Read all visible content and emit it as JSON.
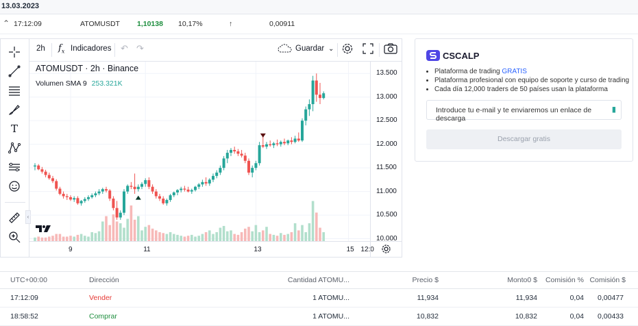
{
  "date": "13.03.2023",
  "ticker_row": {
    "time": "17:12:09",
    "symbol": "ATOMUSDT",
    "price": "1,10138",
    "change": "10,17%",
    "arrow": "↑",
    "volume": "0,00911"
  },
  "toolbar": {
    "interval": "2h",
    "indicators_label": "Indicadores",
    "save_label": "Guardar"
  },
  "chart_legend": {
    "title": "ATOMUSDT · 2h · Binance",
    "vol_label": "Volumen SMA 9",
    "vol_value": "253.321K"
  },
  "colors": {
    "up": "#26a69a",
    "down": "#ef5350",
    "up_vol": "#b2dfcc",
    "down_vol": "#f7b9b8",
    "brand": "#4f46e5",
    "link": "#2962ff"
  },
  "chart_data": {
    "type": "candlestick",
    "title": "ATOMUSDT · 2h · Binance",
    "ylim": [
      9.95,
      13.75
    ],
    "y_ticks": [
      "13.500",
      "13.000",
      "12.500",
      "12.000",
      "11.500",
      "11.000",
      "10.500",
      "10.000"
    ],
    "x_ticks": [
      "9",
      "11",
      "13",
      "15",
      "12:0"
    ],
    "markers": [
      {
        "index": 29,
        "type": "buy-arrow-up"
      },
      {
        "index": 64,
        "type": "sell-arrow-down"
      }
    ],
    "candles": [
      [
        11.53,
        11.6,
        11.45,
        11.55
      ],
      [
        11.55,
        11.58,
        11.45,
        11.47
      ],
      [
        11.47,
        11.52,
        11.38,
        11.42
      ],
      [
        11.42,
        11.46,
        11.3,
        11.35
      ],
      [
        11.35,
        11.4,
        11.25,
        11.28
      ],
      [
        11.28,
        11.33,
        11.18,
        11.22
      ],
      [
        11.22,
        11.26,
        11.02,
        11.06
      ],
      [
        11.06,
        11.1,
        10.92,
        10.95
      ],
      [
        10.95,
        11.0,
        10.85,
        10.9
      ],
      [
        10.9,
        10.95,
        10.82,
        10.88
      ],
      [
        10.88,
        10.92,
        10.8,
        10.83
      ],
      [
        10.83,
        10.9,
        10.78,
        10.86
      ],
      [
        10.86,
        10.9,
        10.72,
        10.75
      ],
      [
        10.75,
        10.82,
        10.7,
        10.8
      ],
      [
        10.8,
        10.88,
        10.76,
        10.84
      ],
      [
        10.84,
        10.92,
        10.8,
        10.88
      ],
      [
        10.88,
        10.96,
        10.85,
        10.92
      ],
      [
        10.92,
        11.0,
        10.88,
        10.96
      ],
      [
        10.96,
        11.05,
        10.92,
        11.0
      ],
      [
        11.0,
        11.08,
        10.95,
        11.05
      ],
      [
        11.05,
        11.1,
        10.98,
        11.02
      ],
      [
        11.02,
        11.05,
        10.8,
        10.85
      ],
      [
        10.85,
        10.9,
        10.6,
        10.65
      ],
      [
        10.65,
        10.8,
        10.4,
        10.45
      ],
      [
        10.45,
        10.6,
        10.4,
        10.55
      ],
      [
        10.55,
        11.05,
        10.5,
        11.0
      ],
      [
        11.0,
        11.15,
        10.95,
        11.12
      ],
      [
        11.12,
        11.2,
        11.05,
        11.1
      ],
      [
        11.1,
        11.38,
        10.95,
        11.05
      ],
      [
        11.05,
        11.15,
        11.0,
        11.1
      ],
      [
        11.1,
        11.2,
        11.05,
        11.16
      ],
      [
        11.16,
        11.28,
        11.1,
        11.24
      ],
      [
        11.24,
        11.3,
        11.05,
        11.1
      ],
      [
        11.1,
        11.15,
        10.95,
        11.0
      ],
      [
        11.0,
        11.05,
        10.85,
        10.9
      ],
      [
        10.9,
        10.95,
        10.8,
        10.85
      ],
      [
        10.85,
        10.9,
        10.72,
        10.75
      ],
      [
        10.75,
        10.85,
        10.7,
        10.82
      ],
      [
        10.82,
        10.95,
        10.78,
        10.92
      ],
      [
        10.92,
        11.0,
        10.88,
        10.98
      ],
      [
        10.98,
        11.05,
        10.92,
        11.03
      ],
      [
        11.03,
        11.1,
        10.98,
        11.06
      ],
      [
        11.06,
        11.12,
        11.0,
        11.04
      ],
      [
        11.04,
        11.1,
        10.98,
        11.0
      ],
      [
        11.0,
        11.06,
        10.95,
        11.03
      ],
      [
        11.03,
        11.12,
        11.0,
        11.1
      ],
      [
        11.1,
        11.18,
        11.05,
        11.15
      ],
      [
        11.15,
        11.25,
        11.1,
        11.2
      ],
      [
        11.2,
        11.3,
        11.12,
        11.17
      ],
      [
        11.17,
        11.28,
        11.12,
        11.25
      ],
      [
        11.25,
        11.38,
        11.2,
        11.33
      ],
      [
        11.33,
        11.45,
        11.28,
        11.4
      ],
      [
        11.4,
        11.55,
        11.35,
        11.5
      ],
      [
        11.5,
        11.75,
        11.45,
        11.7
      ],
      [
        11.7,
        11.88,
        11.6,
        11.82
      ],
      [
        11.82,
        11.92,
        11.75,
        11.88
      ],
      [
        11.88,
        11.95,
        11.8,
        11.85
      ],
      [
        11.85,
        11.9,
        11.75,
        11.8
      ],
      [
        11.8,
        11.88,
        11.72,
        11.76
      ],
      [
        11.76,
        11.82,
        11.6,
        11.65
      ],
      [
        11.65,
        11.7,
        11.35,
        11.4
      ],
      [
        11.4,
        11.55,
        11.3,
        11.5
      ],
      [
        11.5,
        11.65,
        11.45,
        11.6
      ],
      [
        11.6,
        12.05,
        11.55,
        11.98
      ],
      [
        11.98,
        12.2,
        11.92,
        11.95
      ],
      [
        11.95,
        12.05,
        11.9,
        12.0
      ],
      [
        12.0,
        12.08,
        11.95,
        11.98
      ],
      [
        11.98,
        12.05,
        11.92,
        12.02
      ],
      [
        12.02,
        12.1,
        11.96,
        12.0
      ],
      [
        12.0,
        12.08,
        11.95,
        12.05
      ],
      [
        12.05,
        12.12,
        11.98,
        12.02
      ],
      [
        12.02,
        12.1,
        11.98,
        12.08
      ],
      [
        12.08,
        12.15,
        12.0,
        12.05
      ],
      [
        12.05,
        12.18,
        12.02,
        12.12
      ],
      [
        12.12,
        12.25,
        12.05,
        12.08
      ],
      [
        12.08,
        12.55,
        12.05,
        12.5
      ],
      [
        12.5,
        12.8,
        12.4,
        12.74
      ],
      [
        12.74,
        12.95,
        12.6,
        12.85
      ],
      [
        12.85,
        13.45,
        12.7,
        13.35
      ],
      [
        13.35,
        13.5,
        12.9,
        13.05
      ],
      [
        13.05,
        13.3,
        12.85,
        12.98
      ],
      [
        12.98,
        13.12,
        12.95,
        13.08
      ]
    ],
    "volumes": [
      0.04,
      0.05,
      0.04,
      0.04,
      0.05,
      0.06,
      0.08,
      0.08,
      0.05,
      0.05,
      0.06,
      0.05,
      0.07,
      0.08,
      0.06,
      0.05,
      0.1,
      0.09,
      0.11,
      0.22,
      0.28,
      0.18,
      0.3,
      0.22,
      0.2,
      0.15,
      0.25,
      0.4,
      0.24,
      0.28,
      0.12,
      0.16,
      0.18,
      0.14,
      0.12,
      0.1,
      0.09,
      0.08,
      0.1,
      0.08,
      0.07,
      0.06,
      0.05,
      0.06,
      0.07,
      0.05,
      0.06,
      0.08,
      0.1,
      0.12,
      0.08,
      0.1,
      0.15,
      0.17,
      0.11,
      0.12,
      0.08,
      0.07,
      0.1,
      0.14,
      0.16,
      0.11,
      0.18,
      0.1,
      0.12,
      0.16,
      0.08,
      0.07,
      0.06,
      0.09,
      0.07,
      0.08,
      0.1,
      0.2,
      0.12,
      0.18,
      0.1,
      0.2,
      0.45,
      0.32,
      0.15,
      0.1
    ]
  },
  "promo": {
    "brand": "CSCALP",
    "bullet1_prefix": "Plataforma de trading ",
    "bullet1_link": "GRATIS",
    "bullet2": "Plataforma profesional con equipo de soporte y curso de trading",
    "bullet3": "Cada día 12,000 traders de 50 países usan la plataforma",
    "email_placeholder": "Introduce tu e-mail y te enviaremos un enlace de descarga",
    "download_button": "Descargar gratis"
  },
  "orders": {
    "headers": [
      "UTC+00:00",
      "Dirección",
      "Cantidad ATOMU...",
      "Precio $",
      "Monto0 $",
      "Comisión %",
      "Comisión $"
    ],
    "rows": [
      {
        "time": "17:12:09",
        "side": "Vender",
        "side_color": "#e53935",
        "qty": "1 ATOMU...",
        "price": "11,934",
        "amount": "11,934",
        "fee_pct": "0,04",
        "fee": "0,00477"
      },
      {
        "time": "18:58:52",
        "side": "Comprar",
        "side_color": "#1e8e3e",
        "qty": "1 ATOMU...",
        "price": "10,832",
        "amount": "10,832",
        "fee_pct": "0,04",
        "fee": "0,00433"
      }
    ]
  }
}
